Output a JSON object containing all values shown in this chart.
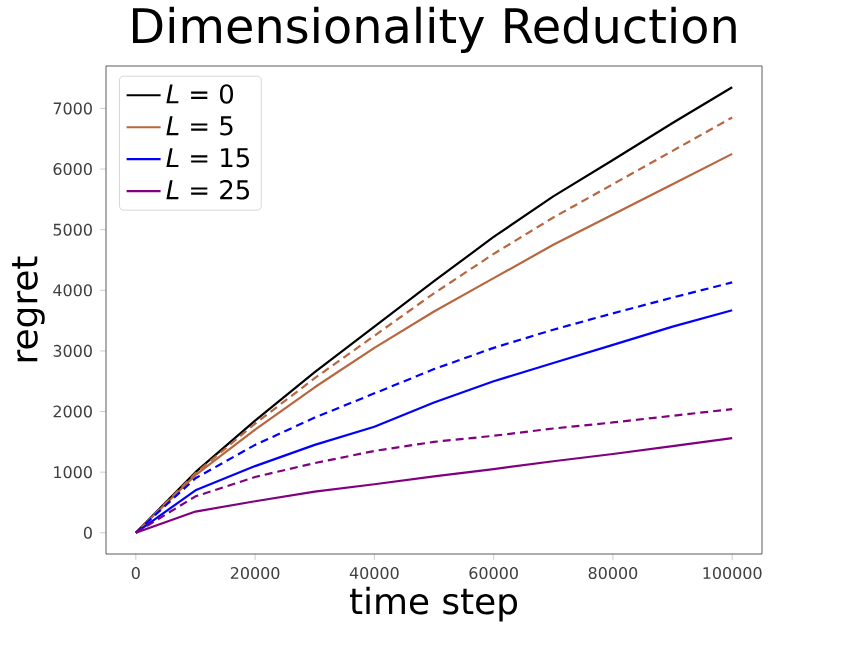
{
  "chart_data": {
    "type": "line",
    "title": "Dimensionality Reduction",
    "xlabel": "time step",
    "ylabel": "regret",
    "x": [
      0,
      10000,
      20000,
      30000,
      40000,
      50000,
      60000,
      70000,
      80000,
      90000,
      100000
    ],
    "xlim": [
      -5000,
      105000
    ],
    "ylim": [
      -350,
      7700
    ],
    "xticks": [
      0,
      20000,
      40000,
      60000,
      80000,
      100000
    ],
    "yticks": [
      0,
      1000,
      2000,
      3000,
      4000,
      5000,
      6000,
      7000
    ],
    "legend": "top left",
    "marker": "none",
    "series": [
      {
        "name": "*L* = 0",
        "color": "#000000",
        "line_style": "solid",
        "values": [
          0,
          1000,
          1850,
          2650,
          3400,
          4150,
          4880,
          5550,
          6150,
          6760,
          7350
        ]
      },
      {
        "name": "*L* = 5",
        "color": "#b8663f",
        "line_style": "solid",
        "values": [
          0,
          950,
          1700,
          2400,
          3050,
          3650,
          4200,
          4750,
          5250,
          5750,
          6250
        ]
      },
      {
        "name": "*L* = 15",
        "color": "#0000ff",
        "line_style": "solid",
        "values": [
          0,
          700,
          1100,
          1450,
          1750,
          2150,
          2500,
          2800,
          3100,
          3400,
          3670
        ]
      },
      {
        "name": "*L* = 25",
        "color": "#800080",
        "line_style": "solid",
        "values": [
          0,
          350,
          520,
          680,
          800,
          930,
          1050,
          1180,
          1300,
          1430,
          1560
        ]
      },
      {
        "color": "#b8663f",
        "line_style": "dashed",
        "values": [
          0,
          980,
          1800,
          2550,
          3250,
          3950,
          4600,
          5200,
          5750,
          6300,
          6850
        ]
      },
      {
        "color": "#0000ff",
        "line_style": "dashed",
        "values": [
          0,
          900,
          1450,
          1900,
          2300,
          2700,
          3050,
          3350,
          3620,
          3880,
          4130
        ]
      },
      {
        "color": "#800080",
        "line_style": "dashed",
        "values": [
          0,
          600,
          920,
          1150,
          1350,
          1500,
          1600,
          1720,
          1820,
          1930,
          2040
        ]
      }
    ]
  }
}
